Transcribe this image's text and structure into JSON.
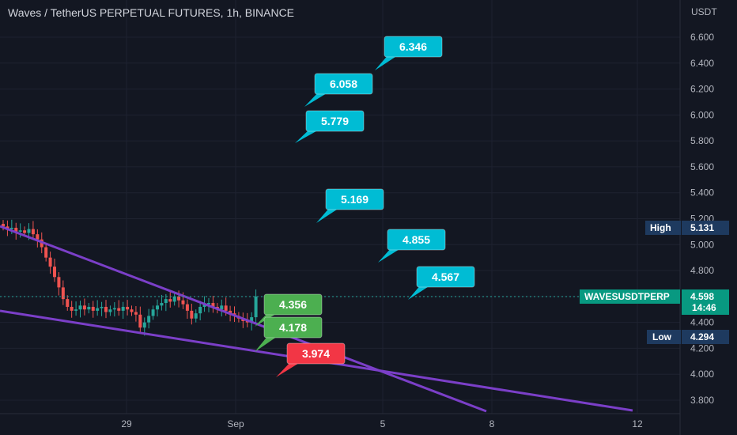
{
  "header": {
    "title": "Waves / TetherUS PERPETUAL FUTURES, 1h, BINANCE"
  },
  "colors": {
    "background": "#131722",
    "grid": "#1e2230",
    "trendline": "#7b3fc8",
    "callout_blue": "#00bcd4",
    "callout_green": "#4caf50",
    "callout_red": "#f23645",
    "up_candle": "#26a69a",
    "down_candle": "#ef5350",
    "price_tag": "#089981",
    "range_tag": "#1e3a5f"
  },
  "chart_data": {
    "type": "candlestick",
    "title": "Waves / TetherUS PERPETUAL FUTURES, 1h, BINANCE",
    "y_axis": {
      "unit": "USDT",
      "ticks": [
        "6.600",
        "6.400",
        "6.200",
        "6.000",
        "5.800",
        "5.600",
        "5.400",
        "5.200",
        "5.000",
        "4.800",
        "4.600",
        "4.400",
        "4.200",
        "4.000",
        "3.800"
      ],
      "ylim": [
        3.75,
        6.72
      ]
    },
    "x_axis": {
      "ticks": [
        "29",
        "Sep",
        "5",
        "8",
        "12"
      ]
    },
    "price_series": [
      5.14,
      5.12,
      5.13,
      5.1,
      5.11,
      5.09,
      5.12,
      5.08,
      5.04,
      4.98,
      4.9,
      4.83,
      4.75,
      4.67,
      4.58,
      4.52,
      4.49,
      4.5,
      4.53,
      4.5,
      4.52,
      4.49,
      4.51,
      4.52,
      4.48,
      4.5,
      4.51,
      4.49,
      4.52,
      4.5,
      4.48,
      4.46,
      4.36,
      4.4,
      4.45,
      4.5,
      4.53,
      4.55,
      4.58,
      4.56,
      4.6,
      4.57,
      4.54,
      4.49,
      4.43,
      4.47,
      4.52,
      4.54,
      4.55,
      4.52,
      4.5,
      4.53,
      4.49,
      4.47,
      4.45,
      4.43,
      4.41,
      4.4,
      4.44,
      4.6
    ],
    "targets": [
      {
        "label": "6.346",
        "color": "blue"
      },
      {
        "label": "6.058",
        "color": "blue"
      },
      {
        "label": "5.779",
        "color": "blue"
      },
      {
        "label": "5.169",
        "color": "blue"
      },
      {
        "label": "4.855",
        "color": "blue"
      },
      {
        "label": "4.567",
        "color": "blue"
      },
      {
        "label": "4.356",
        "color": "green"
      },
      {
        "label": "4.178",
        "color": "green"
      },
      {
        "label": "3.974",
        "color": "red"
      }
    ],
    "price_labels": {
      "high_label": "High",
      "high_value": "5.131",
      "symbol": "WAVESUSDTPERP",
      "last_value": "4.598",
      "countdown": "14:46",
      "low_label": "Low",
      "low_value": "4.294"
    }
  }
}
